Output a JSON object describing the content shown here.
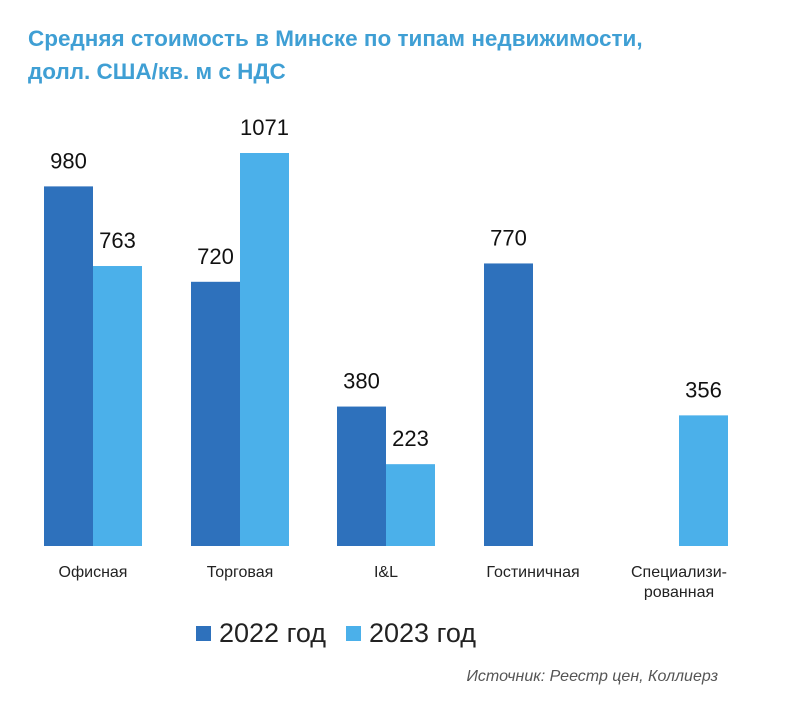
{
  "title": {
    "line1": "Средняя стоимость в Минске по типам недвижимости,",
    "line2": "долл. США/кв. м с НДС"
  },
  "colors": {
    "series_2022": "#2e71bc",
    "series_2023": "#4bb0ea",
    "title": "#3f9fd4"
  },
  "legend": {
    "items": [
      {
        "label": "2022 год",
        "color": "#2e71bc"
      },
      {
        "label": "2023 год",
        "color": "#4bb0ea"
      }
    ]
  },
  "source": {
    "label": "Источник:",
    "text": " Реестр цен, Коллиерз"
  },
  "chart_data": {
    "type": "bar",
    "title": "Средняя стоимость в Минске по типам недвижимости, долл. США/кв. м с НДС",
    "categories": [
      [
        "Офисная"
      ],
      [
        "Торговая"
      ],
      [
        "I&L"
      ],
      [
        "Гостиничная"
      ],
      [
        "Специализи-",
        "рованная"
      ]
    ],
    "series": [
      {
        "name": "2022 год",
        "values": [
          980,
          720,
          380,
          770,
          null
        ]
      },
      {
        "name": "2023 год",
        "values": [
          763,
          1071,
          223,
          null,
          356
        ]
      }
    ],
    "ylim": [
      0,
      1071
    ],
    "grid": false,
    "legend_position": "bottom"
  }
}
